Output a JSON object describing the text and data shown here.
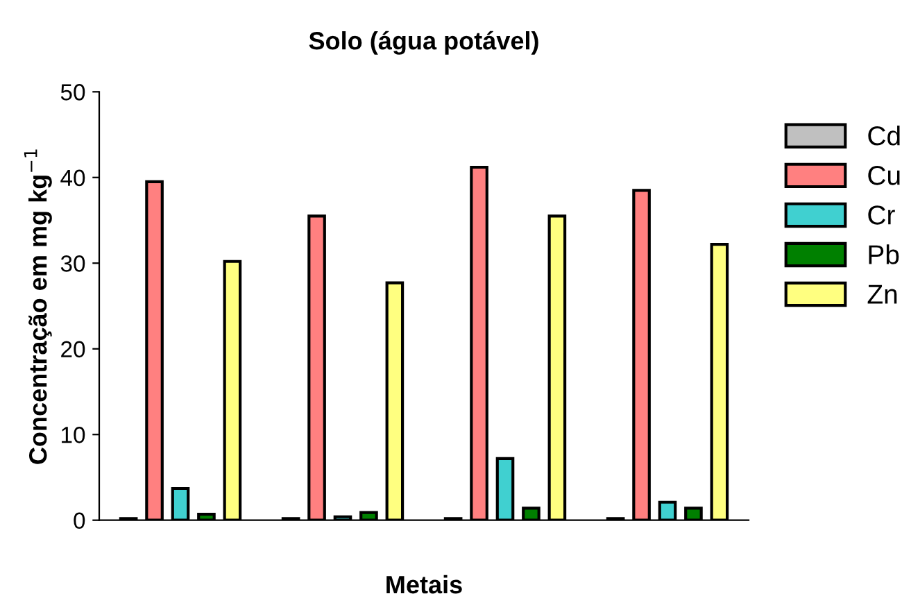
{
  "chart_data": {
    "type": "bar",
    "title": "Solo (água potável)",
    "xlabel": "Metais",
    "ylabel": "Concentração em mg kg$^{−1}$",
    "categories": [
      null,
      null,
      null,
      null
    ],
    "series": [
      {
        "name": "Cd",
        "color": "#c0c0c0",
        "values": [
          0.2,
          0.2,
          0.2,
          0.2
        ]
      },
      {
        "name": "Cu",
        "color": "#ff8080",
        "values": [
          39.5,
          35.5,
          41.2,
          38.5
        ]
      },
      {
        "name": "Cr",
        "color": "#40d0d0",
        "values": [
          3.7,
          0.4,
          7.2,
          2.1
        ]
      },
      {
        "name": "Pb",
        "color": "#008000",
        "values": [
          0.7,
          0.9,
          1.4,
          1.4
        ]
      },
      {
        "name": "Zn",
        "color": "#ffff80",
        "values": [
          30.2,
          27.7,
          35.5,
          32.2
        ]
      }
    ],
    "ylim": [
      0,
      50
    ],
    "yticks": [
      0,
      10,
      20,
      30,
      40,
      50
    ],
    "grid": false,
    "legend": "right"
  }
}
